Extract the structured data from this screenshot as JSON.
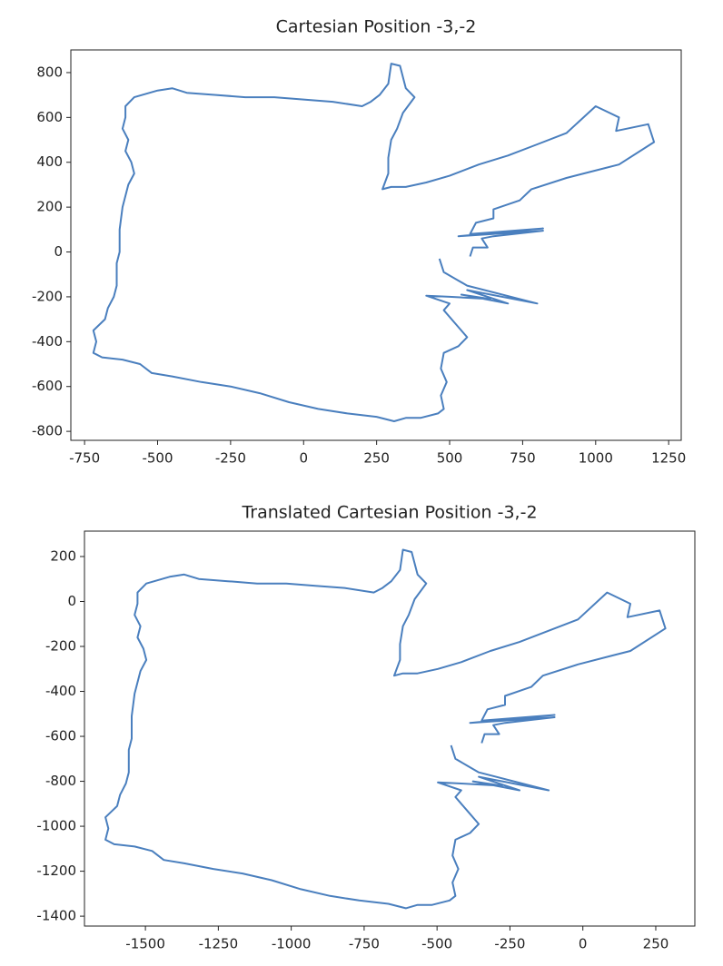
{
  "chart_data": [
    {
      "type": "line",
      "title": "Cartesian Position -3,-2",
      "color": "#4a7fbe",
      "x": [
        465,
        480,
        520,
        560,
        800,
        560,
        700,
        540,
        640,
        500,
        420,
        500,
        480,
        520,
        560,
        530,
        480,
        470,
        490,
        470,
        480,
        460,
        400,
        350,
        310,
        250,
        150,
        50,
        -50,
        -150,
        -250,
        -350,
        -450,
        -520,
        -560,
        -620,
        -690,
        -720,
        -710,
        -720,
        -680,
        -670,
        -650,
        -640,
        -640,
        -630,
        -630,
        -620,
        -600,
        -580,
        -590,
        -610,
        -600,
        -620,
        -610,
        -610,
        -580,
        -500,
        -450,
        -400,
        -300,
        -200,
        -100,
        0,
        100,
        200,
        230,
        260,
        290,
        300,
        330,
        350,
        380,
        340,
        320,
        300,
        290,
        290,
        270,
        300,
        350,
        420,
        500,
        600,
        700,
        800,
        900,
        1000,
        1080,
        1070,
        1180,
        1200,
        1080,
        1020,
        900,
        780,
        740,
        650,
        650,
        590,
        570,
        820,
        530,
        820,
        650,
        610,
        630,
        580,
        570
      ],
      "values": [
        -30,
        -90,
        -120,
        -150,
        -230,
        -170,
        -230,
        -190,
        -210,
        -200,
        -195,
        -230,
        -260,
        -320,
        -380,
        -420,
        -450,
        -520,
        -580,
        -640,
        -700,
        -720,
        -740,
        -740,
        -755,
        -735,
        -720,
        -700,
        -670,
        -630,
        -600,
        -580,
        -555,
        -540,
        -500,
        -480,
        -470,
        -450,
        -400,
        -350,
        -300,
        -250,
        -200,
        -150,
        -50,
        0,
        100,
        200,
        300,
        350,
        400,
        450,
        500,
        550,
        600,
        650,
        690,
        720,
        730,
        710,
        700,
        690,
        690,
        680,
        670,
        650,
        670,
        700,
        750,
        840,
        830,
        730,
        690,
        620,
        550,
        500,
        420,
        350,
        280,
        290,
        290,
        310,
        340,
        390,
        430,
        480,
        530,
        650,
        600,
        540,
        570,
        490,
        390,
        370,
        330,
        280,
        230,
        190,
        150,
        130,
        80,
        105,
        70,
        95,
        70,
        60,
        20,
        20,
        -20
      ],
      "xlim": [
        -797,
        1293
      ],
      "ylim": [
        -840,
        901
      ],
      "xticks": [
        -750,
        -500,
        -250,
        0,
        250,
        500,
        750,
        1000,
        1250
      ],
      "yticks": [
        -800,
        -600,
        -400,
        -200,
        0,
        200,
        400,
        600,
        800
      ]
    },
    {
      "type": "line",
      "title": "Translated Cartesian Position -3,-2",
      "color": "#4a7fbe",
      "x": [
        -452,
        -437,
        -397,
        -357,
        -117,
        -357,
        -217,
        -377,
        -277,
        -417,
        -497,
        -417,
        -437,
        -397,
        -357,
        -387,
        -437,
        -447,
        -427,
        -447,
        -437,
        -457,
        -517,
        -567,
        -607,
        -667,
        -767,
        -867,
        -967,
        -1067,
        -1167,
        -1267,
        -1367,
        -1437,
        -1477,
        -1537,
        -1607,
        -1637,
        -1627,
        -1637,
        -1597,
        -1587,
        -1567,
        -1557,
        -1557,
        -1547,
        -1547,
        -1537,
        -1517,
        -1497,
        -1507,
        -1527,
        -1517,
        -1537,
        -1527,
        -1527,
        -1497,
        -1417,
        -1367,
        -1317,
        -1217,
        -1117,
        -1017,
        -917,
        -817,
        -717,
        -687,
        -657,
        -627,
        -617,
        -587,
        -567,
        -537,
        -577,
        -597,
        -617,
        -627,
        -627,
        -647,
        -617,
        -567,
        -497,
        -417,
        -317,
        -217,
        -117,
        -17,
        83,
        163,
        153,
        263,
        283,
        163,
        103,
        -17,
        -137,
        -177,
        -267,
        -267,
        -327,
        -347,
        -97,
        -387,
        -97,
        -267,
        -307,
        -287,
        -337,
        -347
      ],
      "values": [
        -640,
        -700,
        -730,
        -760,
        -840,
        -780,
        -840,
        -800,
        -820,
        -810,
        -805,
        -840,
        -870,
        -930,
        -990,
        -1030,
        -1060,
        -1130,
        -1190,
        -1250,
        -1310,
        -1330,
        -1350,
        -1350,
        -1365,
        -1345,
        -1330,
        -1310,
        -1280,
        -1240,
        -1210,
        -1190,
        -1165,
        -1150,
        -1110,
        -1090,
        -1080,
        -1060,
        -1010,
        -960,
        -910,
        -860,
        -810,
        -760,
        -660,
        -610,
        -510,
        -410,
        -310,
        -260,
        -210,
        -160,
        -110,
        -60,
        -10,
        40,
        80,
        110,
        120,
        100,
        90,
        80,
        80,
        70,
        60,
        40,
        60,
        90,
        140,
        230,
        220,
        120,
        80,
        10,
        -60,
        -110,
        -190,
        -260,
        -330,
        -320,
        -320,
        -300,
        -270,
        -220,
        -180,
        -130,
        -80,
        40,
        -10,
        -70,
        -40,
        -120,
        -220,
        -240,
        -280,
        -330,
        -380,
        -420,
        -460,
        -480,
        -530,
        -505,
        -540,
        -515,
        -540,
        -550,
        -590,
        -590,
        -630
      ],
      "xlim": [
        -1709,
        384
      ],
      "ylim": [
        -1444,
        313
      ],
      "xticks": [
        -1500,
        -1250,
        -1000,
        -750,
        -500,
        -250,
        0,
        250
      ],
      "yticks": [
        -1400,
        -1200,
        -1000,
        -800,
        -600,
        -400,
        -200,
        0,
        200
      ]
    }
  ]
}
